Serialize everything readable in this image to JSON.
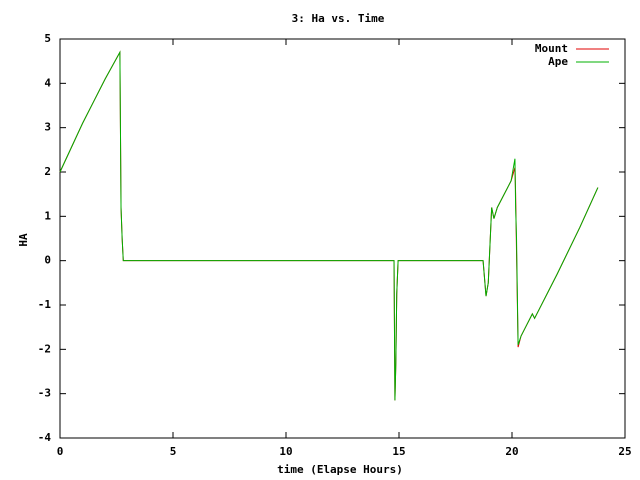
{
  "chart_data": {
    "type": "line",
    "title": "3: Ha vs. Time",
    "x_label": "time (Elapse Hours)",
    "y_label": "HA",
    "x": [
      0,
      0.5,
      1,
      1.5,
      2,
      2.65,
      2.7,
      2.75,
      2.8,
      14.78,
      14.82,
      14.86,
      14.9,
      14.96,
      18.72,
      18.85,
      18.95,
      19.1,
      19.2,
      19.35,
      19.96,
      20.13,
      20.16,
      20.2,
      20.27,
      20.4,
      20.6,
      20.9,
      21.0,
      22,
      23,
      23.8
    ],
    "series": [
      {
        "name": "Mount",
        "color": "#e00000",
        "values": [
          2.0,
          2.55,
          3.1,
          3.6,
          4.1,
          4.7,
          1.2,
          0.5,
          0,
          0,
          -3.15,
          -2.3,
          -0.75,
          0,
          0,
          -0.8,
          -0.5,
          1.2,
          0.95,
          1.2,
          1.8,
          2.1,
          1.5,
          0.2,
          -1.95,
          -1.7,
          -1.5,
          -1.2,
          -1.3,
          -0.3,
          0.75,
          1.65
        ]
      },
      {
        "name": "Ape",
        "color": "#00b000",
        "values": [
          2.0,
          2.55,
          3.1,
          3.6,
          4.1,
          4.7,
          1.2,
          0.5,
          0,
          0,
          -3.15,
          -2.3,
          -0.75,
          0,
          0,
          -0.8,
          -0.5,
          1.2,
          0.95,
          1.2,
          1.8,
          2.3,
          1.2,
          0.5,
          -1.9,
          -1.7,
          -1.5,
          -1.2,
          -1.3,
          -0.3,
          0.75,
          1.65
        ]
      }
    ],
    "xlim": [
      0,
      25
    ],
    "xticks": [
      0,
      5,
      10,
      15,
      20,
      25
    ],
    "ylim": [
      -4,
      5
    ],
    "yticks": [
      -4,
      -3,
      -2,
      -1,
      0,
      1,
      2,
      3,
      4,
      5
    ],
    "grid": false,
    "legend": "top-right"
  }
}
